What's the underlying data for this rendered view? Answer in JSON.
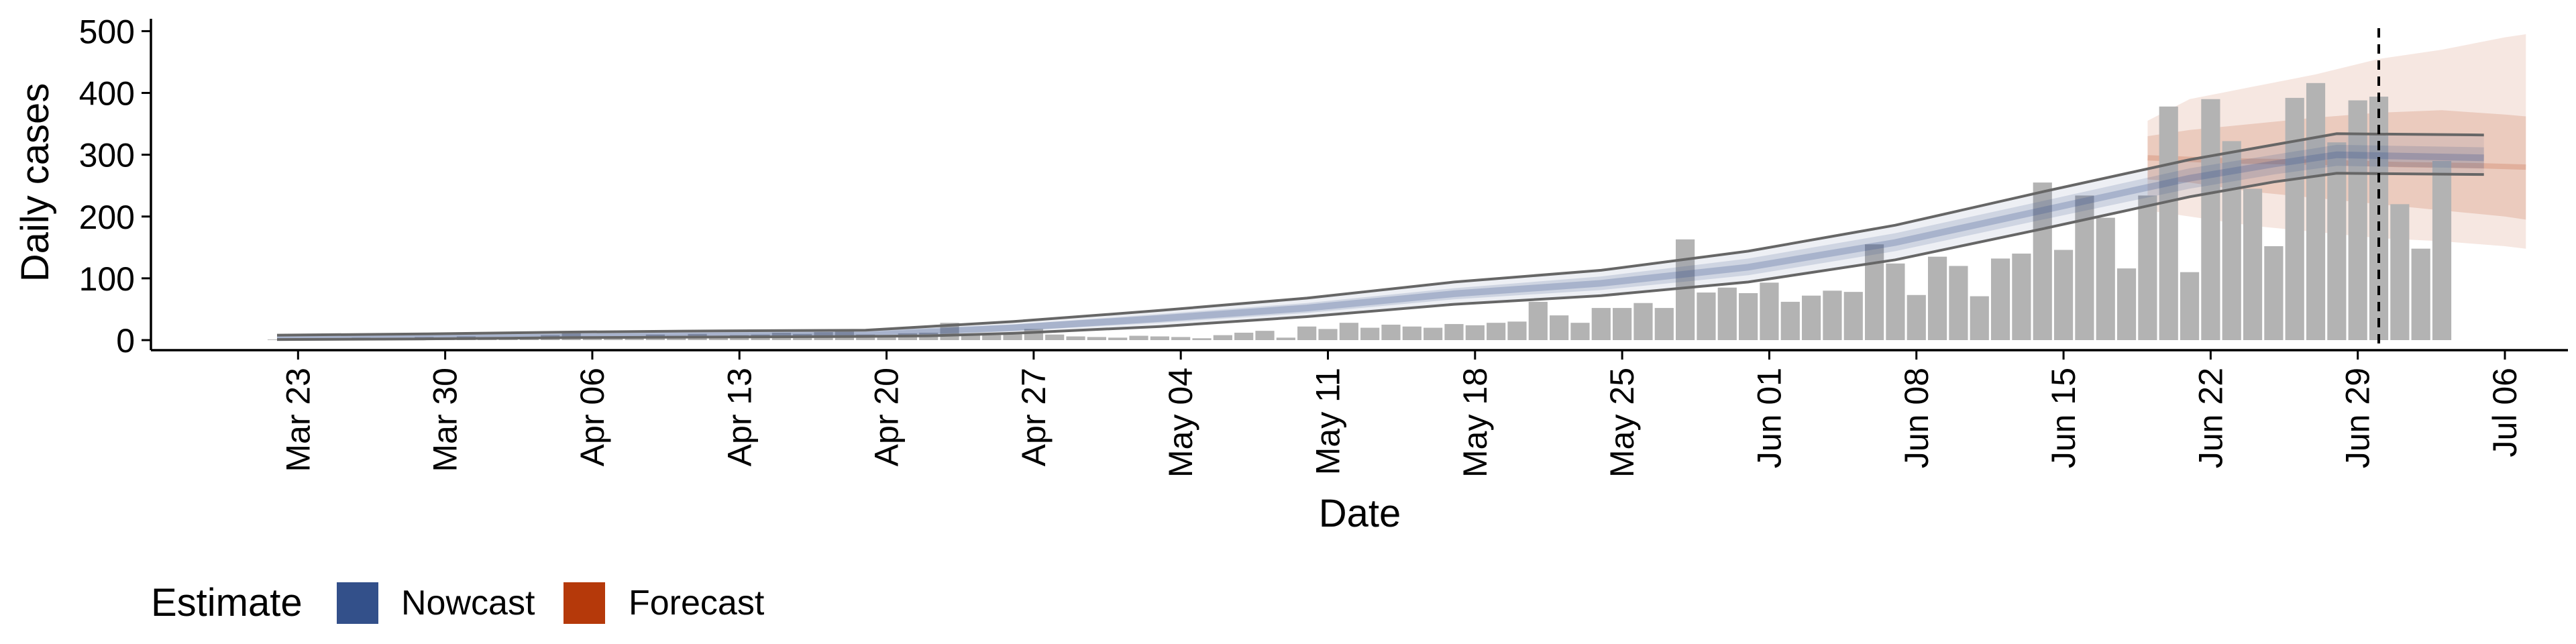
{
  "chart_data": {
    "type": "bar",
    "xlabel": "Date",
    "ylabel": "Daily cases",
    "ylim": [
      0,
      520
    ],
    "yticks": [
      0,
      100,
      200,
      300,
      400,
      500
    ],
    "x_range": [
      "2020-03-16",
      "2020-07-09"
    ],
    "xticks": [
      {
        "date": "2020-03-23",
        "label": "Mar 23"
      },
      {
        "date": "2020-03-30",
        "label": "Mar 30"
      },
      {
        "date": "2020-04-06",
        "label": "Apr 06"
      },
      {
        "date": "2020-04-13",
        "label": "Apr 13"
      },
      {
        "date": "2020-04-20",
        "label": "Apr 20"
      },
      {
        "date": "2020-04-27",
        "label": "Apr 27"
      },
      {
        "date": "2020-05-04",
        "label": "May 04"
      },
      {
        "date": "2020-05-11",
        "label": "May 11"
      },
      {
        "date": "2020-05-18",
        "label": "May 18"
      },
      {
        "date": "2020-05-25",
        "label": "May 25"
      },
      {
        "date": "2020-06-01",
        "label": "Jun 01"
      },
      {
        "date": "2020-06-08",
        "label": "Jun 08"
      },
      {
        "date": "2020-06-15",
        "label": "Jun 15"
      },
      {
        "date": "2020-06-22",
        "label": "Jun 22"
      },
      {
        "date": "2020-06-29",
        "label": "Jun 29"
      },
      {
        "date": "2020-07-06",
        "label": "Jul 06"
      }
    ],
    "grid": false,
    "legend_position": "bottom-left",
    "legend": {
      "title": "Estimate",
      "items": [
        {
          "label": "Nowcast",
          "color": "#33508a"
        },
        {
          "label": "Forecast",
          "color": "#b5390a"
        }
      ]
    },
    "colors": {
      "bars": "#b3b3b3",
      "nowcast": "#33508a",
      "forecast": "#b5390a",
      "outline": "#666666",
      "vline": "#000000"
    },
    "observed": {
      "start_date": "2020-03-22",
      "values": [
        1,
        2,
        3,
        1,
        4,
        2,
        3,
        5,
        2,
        6,
        4,
        3,
        5,
        8,
        12,
        4,
        6,
        5,
        9,
        7,
        10,
        6,
        8,
        9,
        12,
        10,
        13,
        14,
        9,
        8,
        11,
        12,
        28,
        10,
        8,
        12,
        18,
        9,
        6,
        5,
        4,
        7,
        6,
        5,
        3,
        8,
        12,
        15,
        4,
        22,
        18,
        28,
        20,
        25,
        22,
        20,
        26,
        24,
        28,
        30,
        62,
        40,
        28,
        52,
        52,
        60,
        52,
        163,
        77,
        85,
        76,
        93,
        62,
        72,
        80,
        78,
        155,
        124,
        73,
        135,
        120,
        71,
        132,
        140,
        255,
        146,
        234,
        198,
        116,
        234,
        378,
        110,
        390,
        322,
        245,
        152,
        392,
        416,
        320,
        388,
        394,
        220,
        148,
        290
      ]
    },
    "nowcast": {
      "start_date": "2020-03-22",
      "end_date": "2020-06-19",
      "median": [
        [
          0,
          4
        ],
        [
          7,
          6
        ],
        [
          14,
          8
        ],
        [
          21,
          9
        ],
        [
          28,
          10
        ],
        [
          31,
          14
        ],
        [
          35,
          20
        ],
        [
          42,
          35
        ],
        [
          49,
          52
        ],
        [
          56,
          75
        ],
        [
          63,
          92
        ],
        [
          70,
          118
        ],
        [
          77,
          158
        ],
        [
          84,
          210
        ],
        [
          91,
          262
        ],
        [
          95,
          285
        ],
        [
          98,
          300
        ],
        [
          105,
          295
        ]
      ],
      "inner_upper": [
        [
          0,
          6
        ],
        [
          7,
          8
        ],
        [
          14,
          10
        ],
        [
          21,
          12
        ],
        [
          28,
          13
        ],
        [
          31,
          18
        ],
        [
          35,
          25
        ],
        [
          42,
          42
        ],
        [
          49,
          60
        ],
        [
          56,
          84
        ],
        [
          63,
          103
        ],
        [
          70,
          132
        ],
        [
          77,
          173
        ],
        [
          84,
          225
        ],
        [
          91,
          278
        ],
        [
          95,
          300
        ],
        [
          98,
          316
        ],
        [
          105,
          312
        ]
      ],
      "inner_lower": [
        [
          0,
          2
        ],
        [
          7,
          4
        ],
        [
          14,
          6
        ],
        [
          21,
          7
        ],
        [
          28,
          8
        ],
        [
          31,
          10
        ],
        [
          35,
          15
        ],
        [
          42,
          28
        ],
        [
          49,
          44
        ],
        [
          56,
          66
        ],
        [
          63,
          81
        ],
        [
          70,
          105
        ],
        [
          77,
          144
        ],
        [
          84,
          195
        ],
        [
          91,
          245
        ],
        [
          95,
          268
        ],
        [
          98,
          282
        ],
        [
          105,
          278
        ]
      ],
      "outer_upper": [
        [
          0,
          8
        ],
        [
          7,
          10
        ],
        [
          14,
          13
        ],
        [
          21,
          15
        ],
        [
          28,
          16
        ],
        [
          31,
          22
        ],
        [
          35,
          30
        ],
        [
          42,
          48
        ],
        [
          49,
          68
        ],
        [
          56,
          94
        ],
        [
          63,
          113
        ],
        [
          70,
          144
        ],
        [
          77,
          186
        ],
        [
          84,
          240
        ],
        [
          91,
          292
        ],
        [
          95,
          316
        ],
        [
          98,
          334
        ],
        [
          105,
          332
        ]
      ],
      "outer_lower": [
        [
          0,
          1
        ],
        [
          7,
          2
        ],
        [
          14,
          4
        ],
        [
          21,
          5
        ],
        [
          28,
          6
        ],
        [
          31,
          7
        ],
        [
          35,
          11
        ],
        [
          42,
          22
        ],
        [
          49,
          38
        ],
        [
          56,
          58
        ],
        [
          63,
          72
        ],
        [
          70,
          94
        ],
        [
          77,
          130
        ],
        [
          84,
          180
        ],
        [
          91,
          232
        ],
        [
          95,
          256
        ],
        [
          98,
          270
        ],
        [
          105,
          268
        ]
      ]
    },
    "forecast": {
      "start_date": "2020-06-19",
      "outer": [
        [
          0,
          210,
          355
        ],
        [
          2,
          200,
          390
        ],
        [
          5,
          185,
          410
        ],
        [
          8,
          175,
          430
        ],
        [
          11,
          165,
          455
        ],
        [
          14,
          160,
          470
        ],
        [
          17,
          152,
          490
        ],
        [
          18,
          148,
          495
        ]
      ],
      "inner": [
        [
          0,
          260,
          330
        ],
        [
          2,
          255,
          340
        ],
        [
          5,
          240,
          350
        ],
        [
          8,
          230,
          360
        ],
        [
          11,
          220,
          368
        ],
        [
          14,
          210,
          372
        ],
        [
          17,
          200,
          365
        ],
        [
          18,
          195,
          362
        ]
      ],
      "median": [
        [
          0,
          295
        ],
        [
          4,
          290
        ],
        [
          8,
          288
        ],
        [
          12,
          284
        ],
        [
          16,
          282
        ],
        [
          18,
          280
        ]
      ]
    },
    "vline_date": "2020-06-30"
  }
}
